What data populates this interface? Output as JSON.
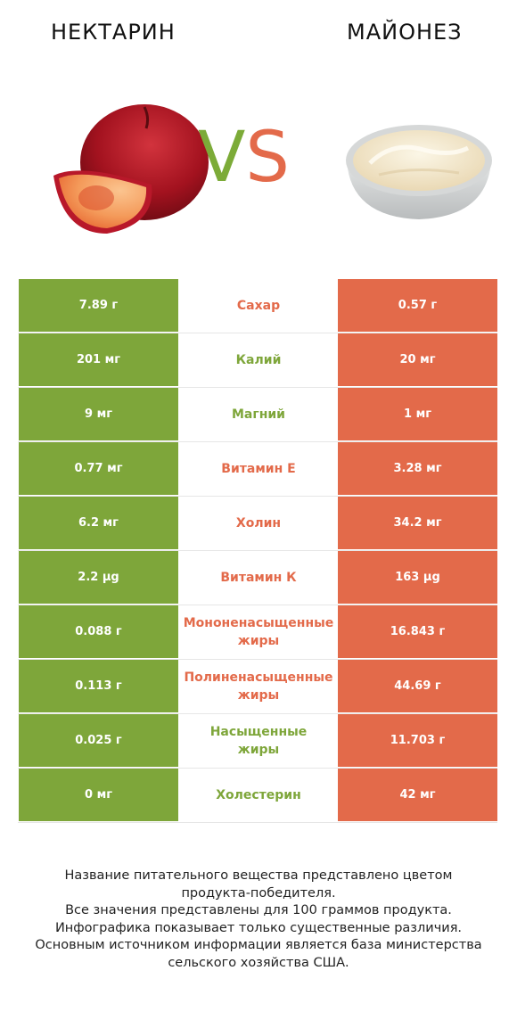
{
  "header": {
    "left_title": "НЕКТАРИН",
    "right_title": "МАЙОНЕЗ",
    "vs_v": "V",
    "vs_s": "S"
  },
  "colors": {
    "left_winner": "#7ea63a",
    "right_winner": "#e36a4a"
  },
  "chart_data": {
    "type": "table",
    "columns": [
      "НЕКТАРИН",
      "",
      "МАЙОНЕЗ"
    ],
    "rows": [
      {
        "nutrient": "Сахар",
        "left": "7.89 г",
        "right": "0.57 г",
        "winner": "right"
      },
      {
        "nutrient": "Калий",
        "left": "201 мг",
        "right": "20 мг",
        "winner": "left"
      },
      {
        "nutrient": "Магний",
        "left": "9 мг",
        "right": "1 мг",
        "winner": "left"
      },
      {
        "nutrient": "Витамин E",
        "left": "0.77 мг",
        "right": "3.28 мг",
        "winner": "right"
      },
      {
        "nutrient": "Холин",
        "left": "6.2 мг",
        "right": "34.2 мг",
        "winner": "right"
      },
      {
        "nutrient": "Витамин К",
        "left": "2.2 µg",
        "right": "163 µg",
        "winner": "right"
      },
      {
        "nutrient": "Мононенасыщенные\nжиры",
        "left": "0.088 г",
        "right": "16.843 г",
        "winner": "right"
      },
      {
        "nutrient": "Полиненасыщенные\nжиры",
        "left": "0.113 г",
        "right": "44.69 г",
        "winner": "right"
      },
      {
        "nutrient": "Насыщенные\nжиры",
        "left": "0.025 г",
        "right": "11.703 г",
        "winner": "left"
      },
      {
        "nutrient": "Холестерин",
        "left": "0 мг",
        "right": "42 мг",
        "winner": "left"
      }
    ]
  },
  "footnote": {
    "lines": [
      "Название питательного вещества представлено цветом",
      "продукта-победителя.",
      "Все значения представлены для 100 граммов продукта.",
      "Инфографика показывает только существенные различия.",
      "Основным источником информации является база министерства",
      "сельского хозяйства США."
    ]
  }
}
